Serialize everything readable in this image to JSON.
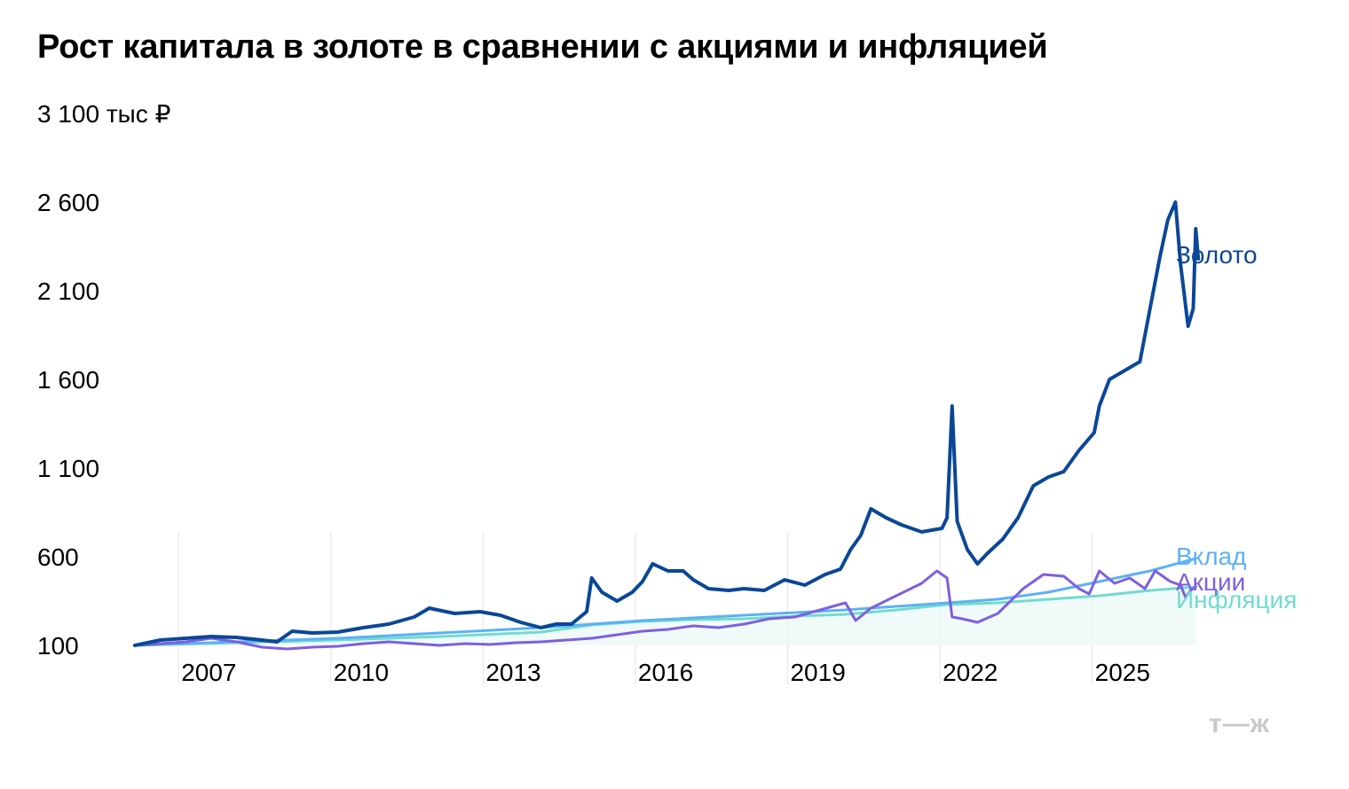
{
  "title": "Рост капитала в золоте в сравнении с акциями и инфляцией",
  "logo": "т—ж",
  "chart_data": {
    "type": "line",
    "title": "Рост капитала в золоте в сравнении с акциями и инфляцией",
    "y_unit": "тыс ₽",
    "y_top_label": "3 100 тыс ₽",
    "yticks": [
      100,
      600,
      1100,
      1600,
      2100,
      2600,
      3100
    ],
    "ytick_labels": [
      "100",
      "600",
      "1 100",
      "1 600",
      "2 100",
      "2 600",
      "3 100 тыс ₽"
    ],
    "xticks": [
      2007,
      2010,
      2013,
      2016,
      2019,
      2022,
      2025
    ],
    "ylim": [
      100,
      3100
    ],
    "xlim": [
      2006.0,
      2026.3
    ],
    "grid": "vertical",
    "legend": "direct labels at right end of lines",
    "series": [
      {
        "name": "Золото",
        "color": "#0a4797",
        "width": 4,
        "points": [
          [
            2006.0,
            100
          ],
          [
            2006.5,
            130
          ],
          [
            2007.0,
            140
          ],
          [
            2007.5,
            150
          ],
          [
            2008.0,
            145
          ],
          [
            2008.5,
            130
          ],
          [
            2008.8,
            120
          ],
          [
            2009.1,
            180
          ],
          [
            2009.5,
            170
          ],
          [
            2010.0,
            175
          ],
          [
            2010.5,
            200
          ],
          [
            2011.0,
            220
          ],
          [
            2011.5,
            260
          ],
          [
            2011.8,
            310
          ],
          [
            2012.3,
            280
          ],
          [
            2012.8,
            290
          ],
          [
            2013.2,
            270
          ],
          [
            2013.6,
            230
          ],
          [
            2014.0,
            200
          ],
          [
            2014.3,
            220
          ],
          [
            2014.6,
            220
          ],
          [
            2014.9,
            290
          ],
          [
            2015.0,
            480
          ],
          [
            2015.2,
            400
          ],
          [
            2015.5,
            350
          ],
          [
            2015.8,
            400
          ],
          [
            2016.0,
            460
          ],
          [
            2016.2,
            560
          ],
          [
            2016.5,
            520
          ],
          [
            2016.8,
            520
          ],
          [
            2017.0,
            470
          ],
          [
            2017.3,
            420
          ],
          [
            2017.7,
            410
          ],
          [
            2018.0,
            420
          ],
          [
            2018.4,
            410
          ],
          [
            2018.8,
            470
          ],
          [
            2019.2,
            440
          ],
          [
            2019.6,
            500
          ],
          [
            2019.9,
            530
          ],
          [
            2020.1,
            640
          ],
          [
            2020.3,
            720
          ],
          [
            2020.5,
            870
          ],
          [
            2020.8,
            820
          ],
          [
            2021.1,
            780
          ],
          [
            2021.5,
            740
          ],
          [
            2021.9,
            760
          ],
          [
            2022.0,
            820
          ],
          [
            2022.1,
            1450
          ],
          [
            2022.2,
            800
          ],
          [
            2022.4,
            640
          ],
          [
            2022.6,
            560
          ],
          [
            2022.8,
            620
          ],
          [
            2023.1,
            700
          ],
          [
            2023.4,
            820
          ],
          [
            2023.7,
            1000
          ],
          [
            2024.0,
            1050
          ],
          [
            2024.3,
            1080
          ],
          [
            2024.6,
            1200
          ],
          [
            2024.9,
            1300
          ],
          [
            2025.0,
            1450
          ],
          [
            2025.2,
            1600
          ],
          [
            2025.5,
            1650
          ],
          [
            2025.8,
            1700
          ],
          [
            2026.0,
            2000
          ],
          [
            2026.2,
            2300
          ],
          [
            2026.35,
            2500
          ],
          [
            2026.5,
            2600
          ],
          [
            2026.6,
            2250
          ],
          [
            2026.75,
            1900
          ],
          [
            2026.85,
            2000
          ],
          [
            2026.9,
            2450
          ],
          [
            2026.95,
            2280
          ]
        ]
      },
      {
        "name": "Акции",
        "color": "#7e5fe0",
        "width": 3,
        "points": [
          [
            2006.0,
            100
          ],
          [
            2006.5,
            110
          ],
          [
            2007.0,
            120
          ],
          [
            2007.5,
            140
          ],
          [
            2008.0,
            120
          ],
          [
            2008.5,
            90
          ],
          [
            2009.0,
            80
          ],
          [
            2009.5,
            90
          ],
          [
            2010.0,
            95
          ],
          [
            2010.5,
            110
          ],
          [
            2011.0,
            120
          ],
          [
            2011.5,
            110
          ],
          [
            2012.0,
            100
          ],
          [
            2012.5,
            110
          ],
          [
            2013.0,
            105
          ],
          [
            2013.5,
            115
          ],
          [
            2014.0,
            120
          ],
          [
            2014.5,
            130
          ],
          [
            2015.0,
            140
          ],
          [
            2015.5,
            160
          ],
          [
            2016.0,
            180
          ],
          [
            2016.5,
            190
          ],
          [
            2017.0,
            210
          ],
          [
            2017.5,
            200
          ],
          [
            2018.0,
            220
          ],
          [
            2018.5,
            250
          ],
          [
            2019.0,
            260
          ],
          [
            2019.5,
            300
          ],
          [
            2020.0,
            340
          ],
          [
            2020.2,
            240
          ],
          [
            2020.5,
            310
          ],
          [
            2021.0,
            380
          ],
          [
            2021.5,
            450
          ],
          [
            2021.8,
            520
          ],
          [
            2022.0,
            480
          ],
          [
            2022.1,
            260
          ],
          [
            2022.3,
            250
          ],
          [
            2022.6,
            230
          ],
          [
            2023.0,
            280
          ],
          [
            2023.5,
            420
          ],
          [
            2023.9,
            500
          ],
          [
            2024.3,
            490
          ],
          [
            2024.6,
            420
          ],
          [
            2024.8,
            390
          ],
          [
            2025.0,
            520
          ],
          [
            2025.3,
            450
          ],
          [
            2025.6,
            480
          ],
          [
            2025.9,
            420
          ],
          [
            2026.1,
            520
          ],
          [
            2026.4,
            460
          ],
          [
            2026.6,
            440
          ],
          [
            2026.7,
            370
          ],
          [
            2026.8,
            410
          ],
          [
            2026.9,
            430
          ]
        ]
      },
      {
        "name": "Вклад",
        "color": "#5cb1f5",
        "width": 3,
        "points": [
          [
            2006.0,
            100
          ],
          [
            2008.0,
            120
          ],
          [
            2010.0,
            140
          ],
          [
            2012.0,
            170
          ],
          [
            2014.0,
            200
          ],
          [
            2016.0,
            240
          ],
          [
            2018.0,
            270
          ],
          [
            2020.0,
            300
          ],
          [
            2021.0,
            320
          ],
          [
            2022.0,
            340
          ],
          [
            2023.0,
            360
          ],
          [
            2024.0,
            400
          ],
          [
            2025.0,
            460
          ],
          [
            2026.0,
            520
          ],
          [
            2026.9,
            590
          ]
        ]
      },
      {
        "name": "Инфляция",
        "color": "#6fdccf",
        "width": 3,
        "points": [
          [
            2006.0,
            100
          ],
          [
            2008.0,
            115
          ],
          [
            2010.0,
            130
          ],
          [
            2012.0,
            150
          ],
          [
            2014.0,
            175
          ],
          [
            2015.0,
            215
          ],
          [
            2016.0,
            235
          ],
          [
            2017.0,
            245
          ],
          [
            2018.0,
            250
          ],
          [
            2019.0,
            265
          ],
          [
            2020.0,
            275
          ],
          [
            2021.0,
            300
          ],
          [
            2022.0,
            330
          ],
          [
            2023.0,
            340
          ],
          [
            2024.0,
            360
          ],
          [
            2025.0,
            380
          ],
          [
            2026.0,
            410
          ],
          [
            2026.9,
            430
          ]
        ]
      }
    ],
    "series_labels": [
      "Золото",
      "Вклад",
      "Акции",
      "Инфляция"
    ]
  }
}
